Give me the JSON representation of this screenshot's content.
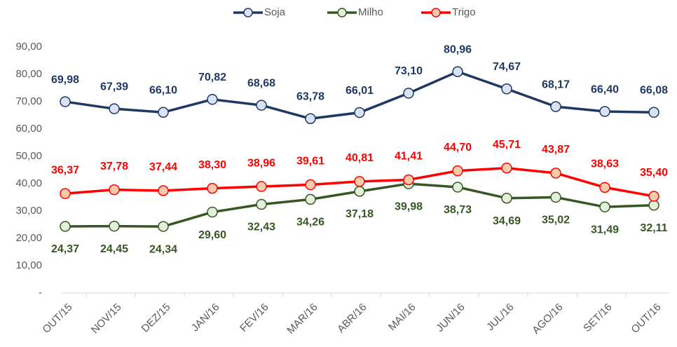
{
  "chart_data": {
    "type": "line",
    "categories": [
      "OUT/15",
      "NOV/15",
      "DEZ/15",
      "JAN/16",
      "FEV/16",
      "MAR/16",
      "ABR/16",
      "MAI/16",
      "JUN/16",
      "JUL/16",
      "AGO/16",
      "SET/16",
      "OUT/16"
    ],
    "series": [
      {
        "name": "Soja",
        "color": "#1f3864",
        "marker_fill": "#dae3f3",
        "values": [
          69.98,
          67.39,
          66.1,
          70.82,
          68.68,
          63.78,
          66.01,
          73.1,
          80.96,
          74.67,
          68.17,
          66.4,
          66.08
        ],
        "value_labels": [
          "69,98",
          "67,39",
          "66,10",
          "70,82",
          "68,68",
          "63,78",
          "66,01",
          "73,10",
          "80,96",
          "74,67",
          "68,17",
          "66,40",
          "66,08"
        ]
      },
      {
        "name": "Milho",
        "color": "#375623",
        "marker_fill": "#e2efda",
        "values": [
          24.37,
          24.45,
          24.34,
          29.6,
          32.43,
          34.26,
          37.18,
          39.98,
          38.73,
          34.69,
          35.02,
          31.49,
          32.11
        ],
        "value_labels": [
          "24,37",
          "24,45",
          "24,34",
          "29,60",
          "32,43",
          "34,26",
          "37,18",
          "39,98",
          "38,73",
          "34,69",
          "35,02",
          "31,49",
          "32,11"
        ]
      },
      {
        "name": "Trigo",
        "color": "#ff0000",
        "marker_fill": "#f8cbad",
        "values": [
          36.37,
          37.78,
          37.44,
          38.3,
          38.96,
          39.61,
          40.81,
          41.41,
          44.7,
          45.71,
          43.87,
          38.63,
          35.4
        ],
        "value_labels": [
          "36,37",
          "37,78",
          "37,44",
          "38,30",
          "38,96",
          "39,61",
          "40,81",
          "41,41",
          "44,70",
          "45,71",
          "43,87",
          "38,63",
          "35,40"
        ]
      }
    ],
    "ylim": [
      0,
      90
    ],
    "yticks": [
      {
        "value": 0,
        "label": "-"
      },
      {
        "value": 10,
        "label": "10,00"
      },
      {
        "value": 20,
        "label": "20,00"
      },
      {
        "value": 30,
        "label": "30,00"
      },
      {
        "value": 40,
        "label": "40,00"
      },
      {
        "value": 50,
        "label": "50,00"
      },
      {
        "value": 60,
        "label": "60,00"
      },
      {
        "value": 70,
        "label": "70,00"
      },
      {
        "value": 80,
        "label": "80,00"
      },
      {
        "value": 90,
        "label": "90,00"
      }
    ],
    "grid": false,
    "legend": "top"
  }
}
